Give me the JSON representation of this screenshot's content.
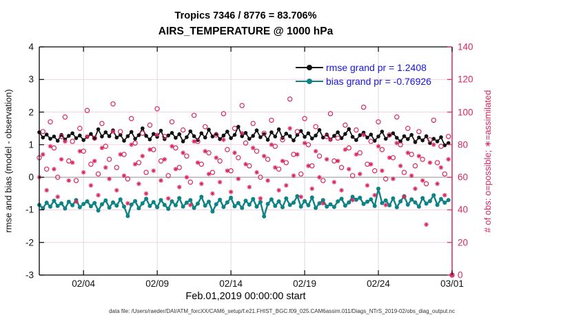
{
  "header": {
    "title_line1": "Tropics 7346 / 8776 = 83.706%",
    "title_line2": "AIRS_TEMPERATURE @ 1000 hPa"
  },
  "footer": {
    "data_file_text": "data file: /Users/raeder/DAI/ATM_forcXX/CAM6_setup/f.e21.FHIST_BGC.f09_025.CAM6assim.011/Diags_NTrS_2019-02/obs_diag_output.nc"
  },
  "legend": {
    "entries": [
      {
        "label": "rmse grand pr = 1.2408",
        "color": "#111111"
      },
      {
        "label": "bias grand pr = -0.76926",
        "color": "#0e8385"
      }
    ],
    "text_color": "#1414e8"
  },
  "colors": {
    "obs_pink": "#d9275e",
    "teal": "#0e8385",
    "black": "#111111",
    "grid_gray": "#d8d8d8",
    "grid_pink": "#f6ccd9",
    "zero_line_gray": "#bbbbbb"
  },
  "chart_data": {
    "type": "line",
    "title": "Tropics 7346 / 8776 = 83.706% | AIRS_TEMPERATURE @ 1000 hPa",
    "xlabel": "Feb.01,2019 00:00:00 start",
    "ylabel_left": "rmse and bias (model - observation)",
    "ylabel_right": "# of obs: o=possible; ∗=assimilated",
    "grid": true,
    "legend_position": "top-right-inside",
    "x_range_days": [
      0,
      28
    ],
    "x_step_days": 0.25,
    "x_ticks": [
      {
        "day": 3,
        "label": "02/04"
      },
      {
        "day": 8,
        "label": "02/09"
      },
      {
        "day": 13,
        "label": "02/14"
      },
      {
        "day": 18,
        "label": "02/19"
      },
      {
        "day": 23,
        "label": "02/24"
      },
      {
        "day": 28,
        "label": "03/01"
      }
    ],
    "ylim_left": [
      -3,
      4
    ],
    "left_ticks": [
      4,
      3,
      2,
      1,
      0,
      -1,
      -2,
      -3
    ],
    "ylim_right": [
      0,
      140
    ],
    "right_ticks": [
      140,
      120,
      100,
      80,
      60,
      40,
      20,
      0
    ],
    "series": [
      {
        "name": "rmse",
        "axis": "left",
        "marker": "dot",
        "color": "#111111",
        "grand_value": 1.2408,
        "values": [
          1.38,
          1.22,
          1.31,
          1.18,
          1.25,
          1.12,
          1.3,
          1.16,
          1.27,
          1.35,
          1.2,
          1.28,
          1.14,
          1.24,
          1.33,
          1.19,
          1.47,
          1.25,
          1.38,
          1.26,
          1.44,
          1.22,
          1.3,
          1.12,
          1.26,
          1.39,
          1.18,
          1.29,
          1.5,
          1.27,
          1.16,
          1.33,
          1.24,
          1.43,
          1.17,
          1.28,
          1.36,
          1.21,
          1.32,
          1.1,
          1.23,
          1.41,
          1.26,
          1.14,
          1.35,
          1.22,
          1.46,
          1.25,
          1.33,
          1.17,
          1.28,
          1.4,
          1.2,
          1.3,
          1.55,
          1.26,
          1.36,
          1.18,
          1.27,
          1.44,
          1.23,
          1.32,
          1.15,
          1.38,
          1.25,
          1.47,
          1.21,
          1.34,
          1.26,
          1.13,
          1.3,
          1.42,
          1.24,
          1.35,
          1.19,
          1.28,
          1.45,
          1.22,
          1.31,
          1.16,
          1.27,
          1.38,
          1.2,
          1.33,
          1.48,
          1.24,
          1.14,
          1.29,
          1.37,
          1.22,
          1.31,
          1.12,
          1.25,
          1.4,
          1.18,
          1.28,
          1.35,
          1.21,
          1.1,
          1.26,
          1.17,
          1.3,
          1.08,
          1.22,
          1.13,
          1.26,
          1.05,
          1.18,
          1.1,
          1.23,
          0.98,
          1.05
        ]
      },
      {
        "name": "bias",
        "axis": "left",
        "marker": "dot",
        "color": "#0e8385",
        "grand_value": -0.76926,
        "values": [
          -0.85,
          -0.95,
          -0.78,
          -0.9,
          -0.72,
          -0.88,
          -0.8,
          -0.96,
          -0.75,
          -0.86,
          -0.7,
          -0.92,
          -0.82,
          -0.74,
          -0.89,
          -0.79,
          -1.02,
          -0.83,
          -0.71,
          -0.93,
          -0.77,
          -0.87,
          -0.68,
          -0.9,
          -1.19,
          -0.84,
          -0.73,
          -0.95,
          -0.8,
          -0.66,
          -0.88,
          -0.76,
          -0.92,
          -0.7,
          -0.85,
          -0.97,
          -0.74,
          -0.86,
          -0.64,
          -0.9,
          -0.78,
          -0.7,
          -0.94,
          -0.81,
          -0.6,
          -0.87,
          -0.75,
          -1.05,
          -0.83,
          -0.69,
          -0.91,
          -0.77,
          -0.63,
          -0.89,
          -0.79,
          -0.94,
          -0.72,
          -0.84,
          -0.67,
          -0.9,
          -0.76,
          -1.2,
          -0.82,
          -0.68,
          -0.88,
          -0.74,
          -0.92,
          -0.65,
          -0.85,
          -0.78,
          -0.58,
          -0.9,
          -0.73,
          -0.86,
          -0.62,
          -0.94,
          -0.8,
          -0.7,
          -0.9,
          -0.83,
          -0.91,
          -0.74,
          -0.66,
          -0.87,
          -0.77,
          -0.6,
          -0.69,
          -0.63,
          -0.82,
          -0.75,
          -0.68,
          -0.88,
          -0.35,
          -0.79,
          -0.71,
          -0.86,
          -0.65,
          -0.92,
          -0.74,
          -0.58,
          -0.84,
          -0.68,
          -0.77,
          -0.9,
          -0.64,
          -0.81,
          -0.73,
          -0.55,
          -0.85,
          -0.67,
          -0.78,
          -0.7
        ]
      },
      {
        "name": "possible",
        "axis": "right",
        "marker": "circle",
        "color": "#d9275e",
        "total": 8776,
        "values": [
          72,
          88,
          65,
          94,
          78,
          60,
          85,
          97,
          70,
          82,
          58,
          90,
          76,
          101,
          68,
          84,
          62,
          93,
          79,
          71,
          105,
          66,
          88,
          74,
          59,
          96,
          81,
          69,
          87,
          63,
          92,
          77,
          102,
          70,
          85,
          61,
          94,
          78,
          66,
          89,
          73,
          57,
          98,
          82,
          68,
          91,
          75,
          63,
          86,
          70,
          99,
          77,
          64,
          90,
          72,
          104,
          81,
          67,
          93,
          76,
          60,
          87,
          71,
          95,
          79,
          65,
          83,
          69,
          108,
          74,
          88,
          62,
          96,
          80,
          67,
          91,
          73,
          58,
          85,
          99,
          70,
          84,
          66,
          92,
          78,
          61,
          89,
          75,
          103,
          68,
          82,
          64,
          94,
          77,
          59,
          86,
          72,
          97,
          80,
          63,
          90,
          74,
          67,
          88,
          71,
          56,
          83,
          95,
          69,
          79,
          62,
          85,
          0
        ]
      },
      {
        "name": "assimilated",
        "axis": "right",
        "marker": "asterisk",
        "color": "#d9275e",
        "total": 7346,
        "values": [
          60,
          74,
          52,
          79,
          65,
          48,
          71,
          82,
          58,
          69,
          45,
          76,
          63,
          85,
          55,
          70,
          49,
          78,
          66,
          59,
          88,
          52,
          74,
          61,
          44,
          80,
          68,
          56,
          73,
          50,
          77,
          64,
          86,
          58,
          71,
          47,
          79,
          65,
          54,
          75,
          60,
          43,
          82,
          69,
          56,
          76,
          62,
          50,
          72,
          57,
          83,
          64,
          51,
          75,
          59,
          87,
          68,
          54,
          78,
          63,
          47,
          73,
          58,
          80,
          66,
          52,
          70,
          55,
          90,
          61,
          74,
          48,
          81,
          67,
          53,
          76,
          60,
          44,
          71,
          83,
          57,
          70,
          52,
          77,
          65,
          46,
          74,
          62,
          86,
          55,
          68,
          49,
          79,
          64,
          43,
          72,
          59,
          81,
          67,
          48,
          75,
          61,
          53,
          73,
          58,
          31,
          69,
          80,
          56,
          66,
          49,
          71,
          0
        ]
      }
    ]
  }
}
